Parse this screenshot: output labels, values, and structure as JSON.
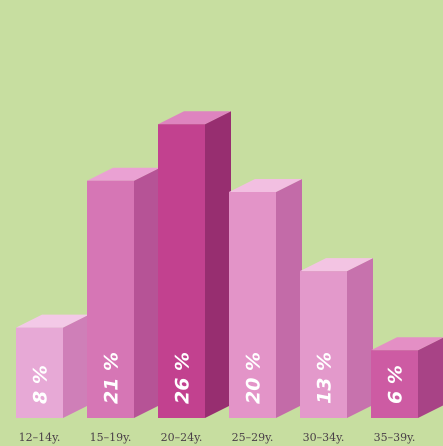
{
  "chart_data": {
    "type": "bar",
    "title": "",
    "xlabel": "",
    "ylabel": "",
    "categories": [
      "12–14y.",
      "15–19y.",
      "20–24y.",
      "25–29y.",
      "30–34y.",
      "35–39y."
    ],
    "values": [
      8,
      21,
      26,
      20,
      13,
      6
    ],
    "value_labels": [
      "8 %",
      "21 %",
      "26 %",
      "20 %",
      "13 %",
      "6 %"
    ],
    "unit": "%",
    "ylim": [
      0,
      26
    ],
    "grid": false,
    "legend": "none",
    "style": "3d-bars"
  },
  "colors": {
    "background": "#c7dea0",
    "bars": [
      {
        "front": "#e7a9d6",
        "side": "#cf7fb8",
        "top": "#f3c9e7"
      },
      {
        "front": "#d676b5",
        "side": "#b65396",
        "top": "#eaa1d3"
      },
      {
        "front": "#c2418f",
        "side": "#972e70",
        "top": "#de84bf"
      },
      {
        "front": "#e394c8",
        "side": "#c36ba8",
        "top": "#f2bfe1"
      },
      {
        "front": "#e399cb",
        "side": "#c772ad",
        "top": "#f3c4e3"
      },
      {
        "front": "#cd5ba3",
        "side": "#a84386",
        "top": "#e48fc5"
      }
    ]
  }
}
